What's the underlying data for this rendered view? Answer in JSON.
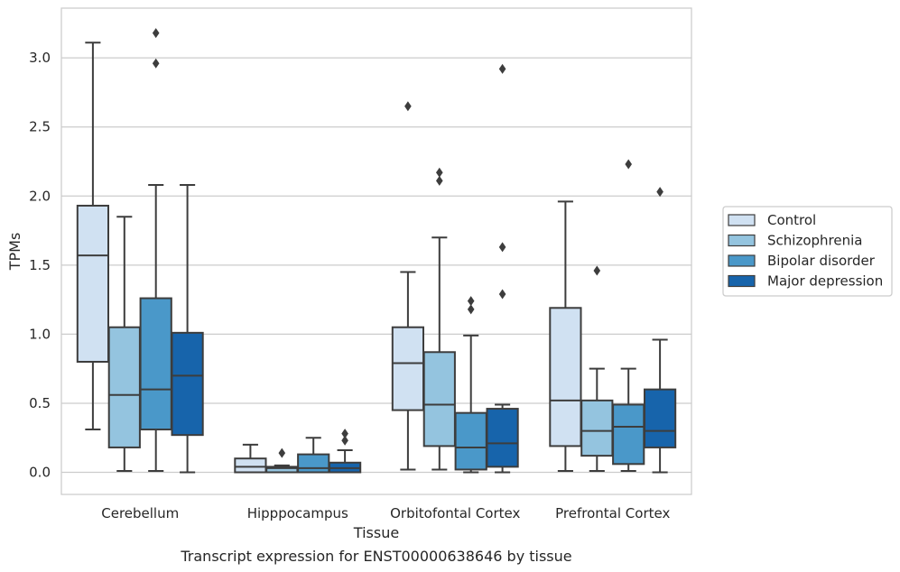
{
  "caption": "Transcript expression for ENST00000638646 by tissue",
  "chart_data": {
    "type": "boxplot",
    "title": "",
    "xlabel": "Tissue",
    "ylabel": "TPMs",
    "ylim": [
      -0.16,
      3.36
    ],
    "yticks": [
      0.0,
      0.5,
      1.0,
      1.5,
      2.0,
      2.5,
      3.0
    ],
    "ytick_labels": [
      "0.0",
      "0.5",
      "1.0",
      "1.5",
      "2.0",
      "2.5",
      "3.0"
    ],
    "grid": "horizontal",
    "legend_position": "right",
    "categories": [
      "Cerebellum",
      "Hipppocampus",
      "Orbitofontal Cortex",
      "Prefrontal Cortex"
    ],
    "series": [
      {
        "name": "Control",
        "color": "#d0e1f2",
        "boxes": [
          {
            "whisker_low": 0.31,
            "q1": 0.8,
            "median": 1.57,
            "q3": 1.93,
            "whisker_high": 3.11,
            "outliers": []
          },
          {
            "whisker_low": 0.0,
            "q1": 0.0,
            "median": 0.04,
            "q3": 0.1,
            "whisker_high": 0.2,
            "outliers": []
          },
          {
            "whisker_low": 0.02,
            "q1": 0.45,
            "median": 0.79,
            "q3": 1.05,
            "whisker_high": 1.45,
            "outliers": [
              2.65
            ]
          },
          {
            "whisker_low": 0.01,
            "q1": 0.19,
            "median": 0.52,
            "q3": 1.19,
            "whisker_high": 1.96,
            "outliers": []
          }
        ]
      },
      {
        "name": "Schizophrenia",
        "color": "#94c4df",
        "boxes": [
          {
            "whisker_low": 0.01,
            "q1": 0.18,
            "median": 0.56,
            "q3": 1.05,
            "whisker_high": 1.85,
            "outliers": []
          },
          {
            "whisker_low": 0.0,
            "q1": 0.0,
            "median": 0.03,
            "q3": 0.04,
            "whisker_high": 0.05,
            "outliers": [
              0.14
            ]
          },
          {
            "whisker_low": 0.02,
            "q1": 0.19,
            "median": 0.49,
            "q3": 0.87,
            "whisker_high": 1.7,
            "outliers": [
              2.11,
              2.17
            ]
          },
          {
            "whisker_low": 0.01,
            "q1": 0.12,
            "median": 0.3,
            "q3": 0.52,
            "whisker_high": 0.75,
            "outliers": [
              1.46
            ]
          }
        ]
      },
      {
        "name": "Bipolar disorder",
        "color": "#4a98c9",
        "boxes": [
          {
            "whisker_low": 0.01,
            "q1": 0.31,
            "median": 0.6,
            "q3": 1.26,
            "whisker_high": 2.08,
            "outliers": [
              2.96,
              3.18
            ]
          },
          {
            "whisker_low": 0.0,
            "q1": 0.0,
            "median": 0.03,
            "q3": 0.13,
            "whisker_high": 0.25,
            "outliers": []
          },
          {
            "whisker_low": 0.0,
            "q1": 0.02,
            "median": 0.18,
            "q3": 0.43,
            "whisker_high": 0.99,
            "outliers": [
              1.18,
              1.24
            ]
          },
          {
            "whisker_low": 0.01,
            "q1": 0.06,
            "median": 0.33,
            "q3": 0.49,
            "whisker_high": 0.75,
            "outliers": [
              2.23
            ]
          }
        ]
      },
      {
        "name": "Major depression",
        "color": "#1764ab",
        "boxes": [
          {
            "whisker_low": 0.0,
            "q1": 0.27,
            "median": 0.7,
            "q3": 1.01,
            "whisker_high": 2.08,
            "outliers": []
          },
          {
            "whisker_low": 0.0,
            "q1": 0.0,
            "median": 0.03,
            "q3": 0.07,
            "whisker_high": 0.16,
            "outliers": [
              0.23,
              0.28
            ]
          },
          {
            "whisker_low": 0.0,
            "q1": 0.04,
            "median": 0.21,
            "q3": 0.46,
            "whisker_high": 0.49,
            "outliers": [
              1.29,
              1.63,
              2.92
            ]
          },
          {
            "whisker_low": 0.0,
            "q1": 0.18,
            "median": 0.3,
            "q3": 0.6,
            "whisker_high": 0.96,
            "outliers": [
              2.03
            ]
          }
        ]
      }
    ]
  }
}
